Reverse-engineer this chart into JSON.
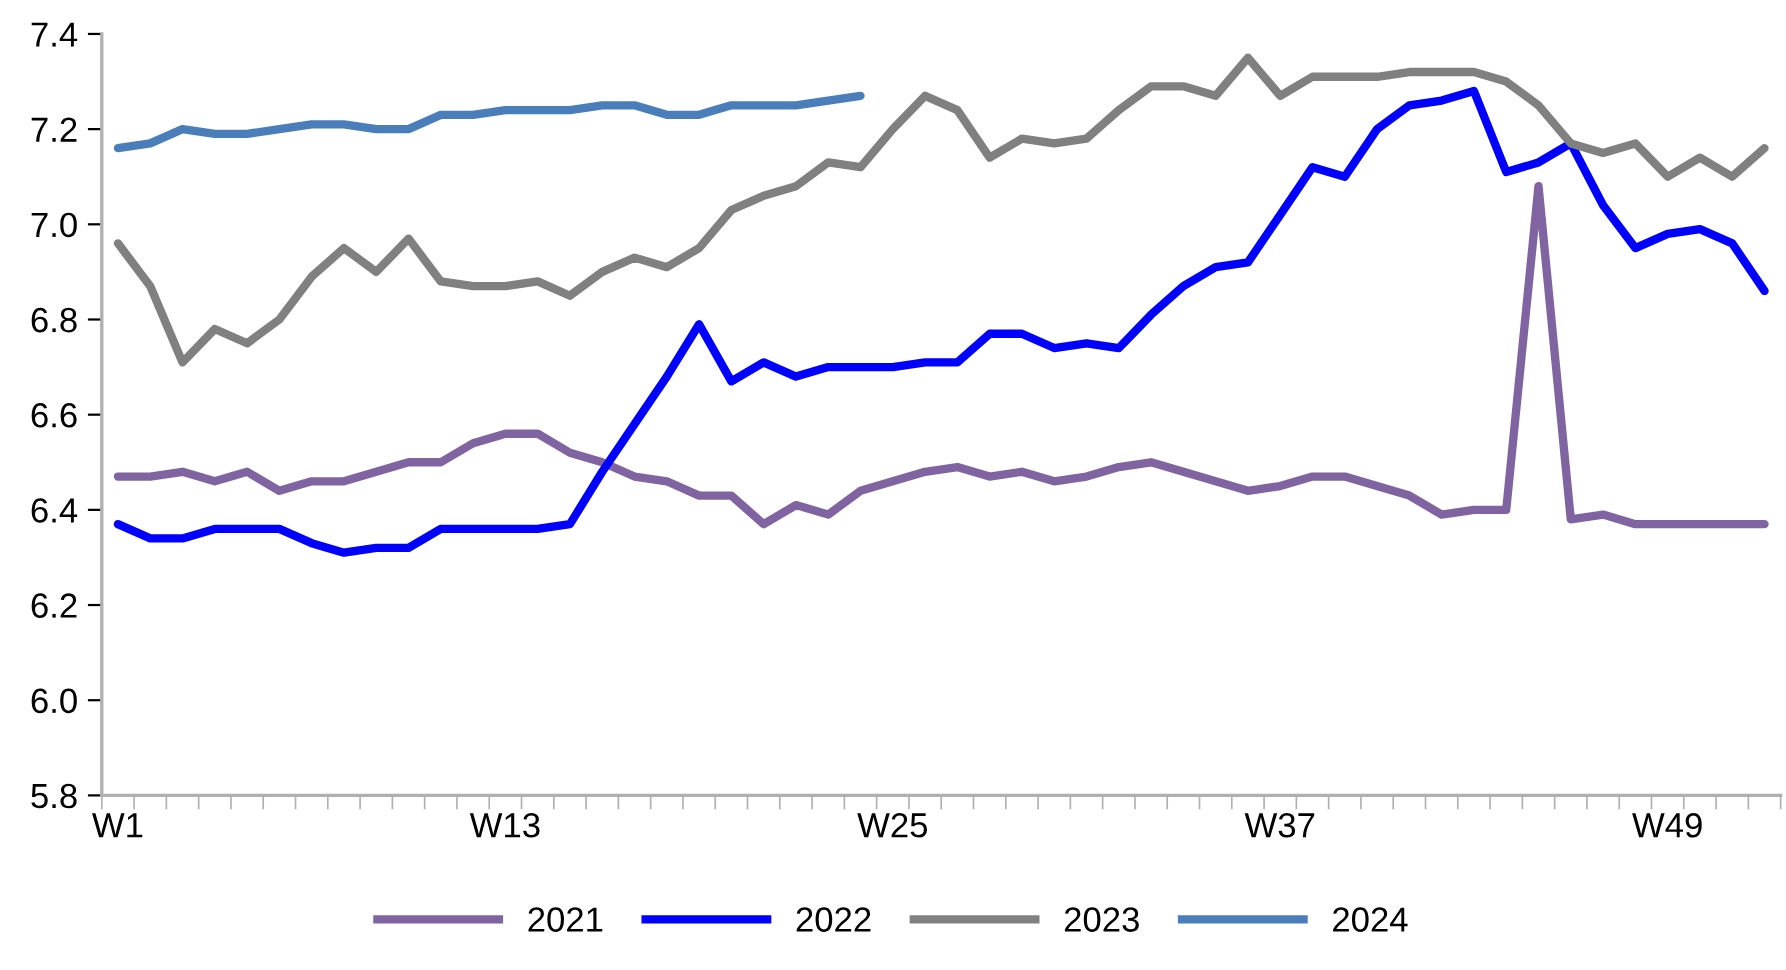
{
  "chart_data": {
    "type": "line",
    "categories": [
      "W1",
      null,
      null,
      null,
      null,
      null,
      null,
      null,
      null,
      null,
      null,
      null,
      "W13",
      null,
      null,
      null,
      null,
      null,
      null,
      null,
      null,
      null,
      null,
      null,
      "W25",
      null,
      null,
      null,
      null,
      null,
      null,
      null,
      null,
      null,
      null,
      null,
      "W37",
      null,
      null,
      null,
      null,
      null,
      null,
      null,
      null,
      null,
      null,
      null,
      "W49",
      null,
      null,
      null
    ],
    "series": [
      {
        "name": "2021",
        "color": "#8064a2",
        "values": [
          6.47,
          6.47,
          6.48,
          6.46,
          6.48,
          6.44,
          6.46,
          6.46,
          6.48,
          6.5,
          6.5,
          6.54,
          6.56,
          6.56,
          6.52,
          6.5,
          6.47,
          6.46,
          6.43,
          6.43,
          6.37,
          6.41,
          6.39,
          6.44,
          6.46,
          6.48,
          6.49,
          6.47,
          6.48,
          6.46,
          6.47,
          6.49,
          6.5,
          6.48,
          6.46,
          6.44,
          6.45,
          6.47,
          6.47,
          6.45,
          6.43,
          6.39,
          6.4,
          6.4,
          7.08,
          6.38,
          6.39,
          6.37,
          6.37,
          6.37,
          6.37,
          6.37
        ]
      },
      {
        "name": "2022",
        "color": "#0000ff",
        "values": [
          6.37,
          6.34,
          6.34,
          6.36,
          6.36,
          6.36,
          6.33,
          6.31,
          6.32,
          6.32,
          6.36,
          6.36,
          6.36,
          6.36,
          6.37,
          6.48,
          6.58,
          6.68,
          6.79,
          6.67,
          6.71,
          6.68,
          6.7,
          6.7,
          6.7,
          6.71,
          6.71,
          6.77,
          6.77,
          6.74,
          6.75,
          6.74,
          6.81,
          6.87,
          6.91,
          6.92,
          7.02,
          7.12,
          7.1,
          7.2,
          7.25,
          7.26,
          7.28,
          7.11,
          7.13,
          7.17,
          7.04,
          6.95,
          6.98,
          6.99,
          6.96,
          6.86
        ]
      },
      {
        "name": "2023",
        "color": "#808080",
        "values": [
          6.96,
          6.87,
          6.71,
          6.78,
          6.75,
          6.8,
          6.89,
          6.95,
          6.9,
          6.97,
          6.88,
          6.87,
          6.87,
          6.88,
          6.85,
          6.9,
          6.93,
          6.91,
          6.95,
          7.03,
          7.06,
          7.08,
          7.13,
          7.12,
          7.2,
          7.27,
          7.24,
          7.14,
          7.18,
          7.17,
          7.18,
          7.24,
          7.29,
          7.29,
          7.27,
          7.35,
          7.27,
          7.31,
          7.31,
          7.31,
          7.32,
          7.32,
          7.32,
          7.3,
          7.25,
          7.17,
          7.15,
          7.17,
          7.1,
          7.14,
          7.1,
          7.16
        ]
      },
      {
        "name": "2024",
        "color": "#4a7ebb",
        "values": [
          7.16,
          7.17,
          7.2,
          7.19,
          7.19,
          7.2,
          7.21,
          7.21,
          7.2,
          7.2,
          7.23,
          7.23,
          7.24,
          7.24,
          7.24,
          7.25,
          7.25,
          7.23,
          7.23,
          7.25,
          7.25,
          7.25,
          7.26,
          7.27,
          null,
          null,
          null,
          null,
          null,
          null,
          null,
          null,
          null,
          null,
          null,
          null,
          null,
          null,
          null,
          null,
          null,
          null,
          null,
          null,
          null,
          null,
          null,
          null,
          null,
          null,
          null,
          null
        ]
      }
    ],
    "ylim": [
      5.8,
      7.4
    ],
    "yticks": [
      {
        "value": 5.8,
        "label": "5.8"
      },
      {
        "value": 6.0,
        "label": "6.0"
      },
      {
        "value": 6.2,
        "label": "6.2"
      },
      {
        "value": 6.4,
        "label": "6.4"
      },
      {
        "value": 6.6,
        "label": "6.6"
      },
      {
        "value": 6.8,
        "label": "6.8"
      },
      {
        "value": 7.0,
        "label": "7.0"
      },
      {
        "value": 7.2,
        "label": "7.2"
      },
      {
        "value": 7.4,
        "label": "7.4"
      }
    ],
    "grid": false,
    "legend": "bottom",
    "marker": "none",
    "line_style": "solid"
  }
}
